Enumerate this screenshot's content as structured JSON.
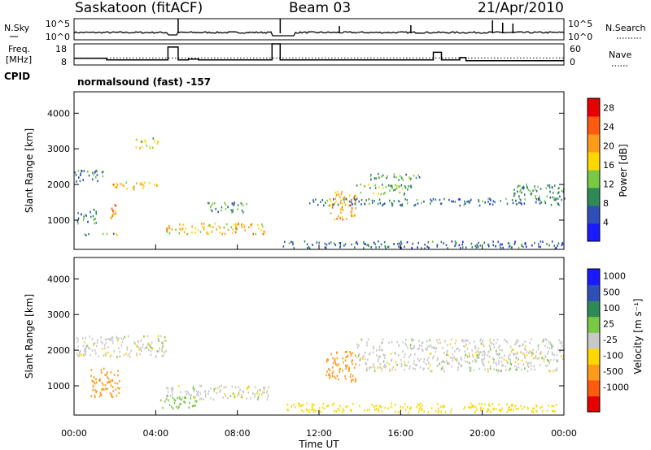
{
  "header": {
    "station": "Saskatoon (fitACF)",
    "beam": "Beam 03",
    "date": "21/Apr/2010"
  },
  "top_panels": {
    "nsky_label": "N.Sky",
    "nsky_ticks": [
      "10^5",
      "10^0"
    ],
    "nsearch_label": "N.Search",
    "nsearch_ticks": [
      "10^5",
      "10^0"
    ],
    "freq_label_line1": "Freq.",
    "freq_label_line2": "[MHz]",
    "freq_ticks": [
      "18",
      "8"
    ],
    "nave_label": "Nave",
    "nave_ticks": [
      "60",
      "0"
    ],
    "cpid_label": "CPID",
    "cpid_text": "normalsound (fast) -157"
  },
  "x_axis": {
    "label": "Time UT",
    "tick_labels": [
      "00:00",
      "04:00",
      "08:00",
      "12:00",
      "16:00",
      "20:00",
      "00:00"
    ]
  },
  "power_panel": {
    "ylabel": "Slant Range [km]",
    "ytick_labels": [
      "1000",
      "2000",
      "3000",
      "4000"
    ],
    "colorbar_label": "Power [dB]",
    "colorbar_ticks": [
      "4",
      "8",
      "12",
      "16",
      "20",
      "24",
      "28"
    ],
    "colorbar_colors": [
      "#1a1aff",
      "#2f4fb8",
      "#2e8b57",
      "#7ac943",
      "#ffd700",
      "#ff9a1a",
      "#ff5a10",
      "#e60000"
    ]
  },
  "velocity_panel": {
    "ylabel": "Slant Range [km]",
    "ytick_labels": [
      "1000",
      "2000",
      "3000",
      "4000"
    ],
    "colorbar_label": "Velocity [m s⁻¹]",
    "colorbar_ticks": [
      "1000",
      "500",
      "100",
      "25",
      "-25",
      "-100",
      "-500",
      "-1000"
    ],
    "colorbar_colors": [
      "#1a1aff",
      "#2f4fb8",
      "#2e8b57",
      "#7ac943",
      "#c8c8c8",
      "#ffd700",
      "#ff9a1a",
      "#ff5a10",
      "#e60000"
    ]
  },
  "chart_data": {
    "type": "heatmap",
    "title": "Saskatoon (fitACF) Beam 03 21/Apr/2010",
    "xlabel": "Time UT",
    "ylabel": "Slant Range [km]",
    "x_range_hours": [
      0,
      24
    ],
    "y_range_km": [
      180,
      4600
    ],
    "frequency_mhz": [
      {
        "start": 0.0,
        "end": 1.6,
        "value": 11.2
      },
      {
        "start": 1.6,
        "end": 4.6,
        "value": 10.4
      },
      {
        "start": 4.6,
        "end": 5.1,
        "value": 16.5
      },
      {
        "start": 5.1,
        "end": 5.6,
        "value": 10.4
      },
      {
        "start": 5.6,
        "end": 6.1,
        "value": 10.8
      },
      {
        "start": 6.1,
        "end": 9.7,
        "value": 10.4
      },
      {
        "start": 9.7,
        "end": 10.1,
        "value": 18.0
      },
      {
        "start": 10.1,
        "end": 17.6,
        "value": 10.4
      },
      {
        "start": 17.6,
        "end": 18.0,
        "value": 14.0
      },
      {
        "start": 18.0,
        "end": 18.9,
        "value": 10.4
      },
      {
        "start": 18.9,
        "end": 19.2,
        "value": 11.5
      },
      {
        "start": 19.2,
        "end": 24.0,
        "value": 10.0
      }
    ],
    "nave_dotted_level": 20,
    "power_scale": {
      "min": 0,
      "max": 30,
      "unit": "dB",
      "ticks": [
        4,
        8,
        12,
        16,
        20,
        24,
        28
      ]
    },
    "velocity_scale": {
      "unit": "m s-1",
      "ticks": [
        1000,
        500,
        100,
        25,
        -25,
        -100,
        -500,
        -1000
      ]
    },
    "data_gap_hours": [
      9.7,
      10.2
    ],
    "power_scatter_regions": [
      {
        "t0": 0.0,
        "t1": 1.5,
        "r0": 2050,
        "r1": 2400,
        "level": 9
      },
      {
        "t0": 0.1,
        "t1": 1.2,
        "r0": 900,
        "r1": 1300,
        "level": 8
      },
      {
        "t0": 0.0,
        "t1": 2.4,
        "r0": 560,
        "r1": 620,
        "level": 12
      },
      {
        "t0": 1.7,
        "t1": 2.2,
        "r0": 1000,
        "r1": 1450,
        "level": 22
      },
      {
        "t0": 1.8,
        "t1": 4.3,
        "r0": 1850,
        "r1": 2050,
        "level": 18
      },
      {
        "t0": 3.0,
        "t1": 4.1,
        "r0": 3000,
        "r1": 3300,
        "level": 14
      },
      {
        "t0": 4.5,
        "t1": 9.6,
        "r0": 600,
        "r1": 900,
        "level": 19
      },
      {
        "t0": 6.5,
        "t1": 8.5,
        "r0": 1200,
        "r1": 1500,
        "level": 10
      },
      {
        "t0": 12.5,
        "t1": 13.8,
        "r0": 1000,
        "r1": 1800,
        "level": 20
      },
      {
        "t0": 11.5,
        "t1": 24.0,
        "r0": 1400,
        "r1": 1600,
        "level": 8
      },
      {
        "t0": 13.8,
        "t1": 16.5,
        "r0": 1700,
        "r1": 2000,
        "level": 12
      },
      {
        "t0": 14.5,
        "t1": 17.0,
        "r0": 2100,
        "r1": 2300,
        "level": 11
      },
      {
        "t0": 21.5,
        "t1": 24.0,
        "r0": 1600,
        "r1": 2000,
        "level": 10
      },
      {
        "t0": 10.2,
        "t1": 24.0,
        "r0": 200,
        "r1": 400,
        "level": 7
      }
    ],
    "velocity_scatter_regions": [
      {
        "t0": 0.8,
        "t1": 2.2,
        "r0": 650,
        "r1": 1500,
        "velocity": -250
      },
      {
        "t0": 0.0,
        "t1": 4.5,
        "r0": 1800,
        "r1": 2400,
        "velocity": 0
      },
      {
        "t0": 4.5,
        "t1": 9.6,
        "r0": 600,
        "r1": 1000,
        "velocity": 0
      },
      {
        "t0": 4.2,
        "t1": 6.0,
        "r0": 350,
        "r1": 700,
        "velocity": 60
      },
      {
        "t0": 12.3,
        "t1": 13.8,
        "r0": 1100,
        "r1": 2000,
        "velocity": -300
      },
      {
        "t0": 13.8,
        "t1": 24.0,
        "r0": 1400,
        "r1": 2300,
        "velocity": 0
      },
      {
        "t0": 10.2,
        "t1": 24.0,
        "r0": 250,
        "r1": 500,
        "velocity": -60
      }
    ]
  }
}
